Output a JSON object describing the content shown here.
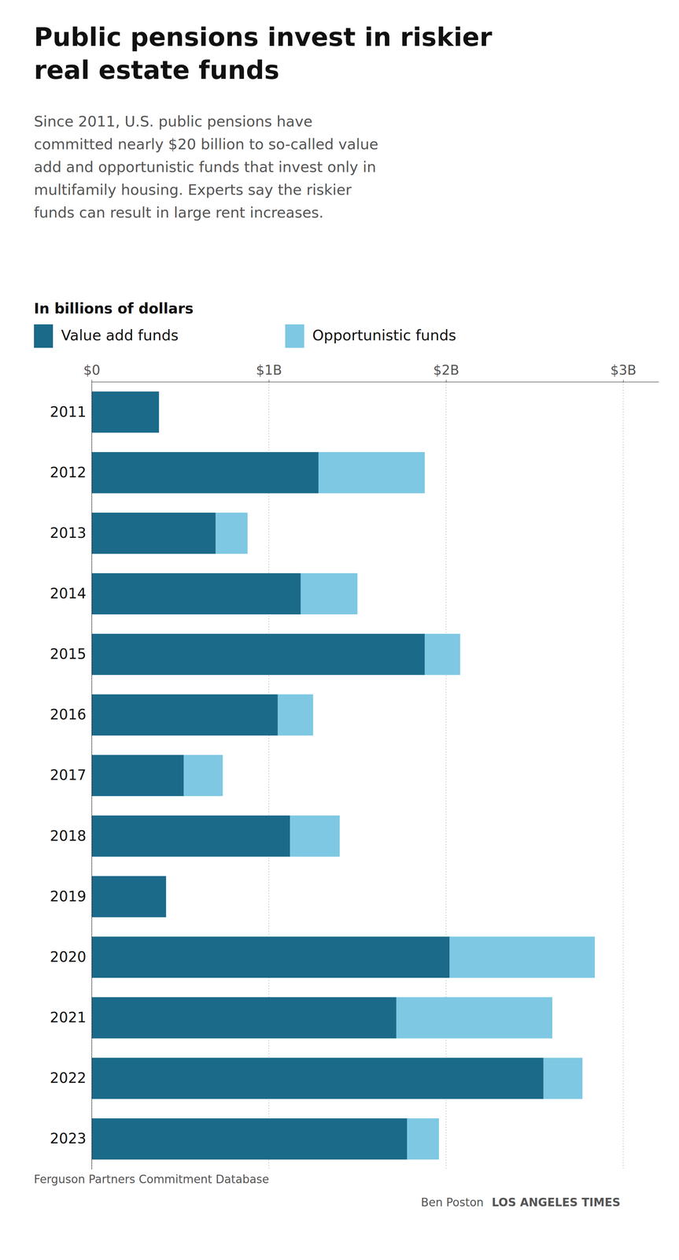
{
  "chart_data": {
    "type": "bar",
    "orientation": "horizontal",
    "stacked": true,
    "title": "Public pensions invest in riskier\nreal estate funds",
    "subtitle": "Since 2011, U.S. public pensions have\ncommitted nearly $20 billion to so-called value\nadd and opportunistic funds that invest only in\nmultifamily housing. Experts say the riskier\nfunds can result in large rent increases.",
    "xlabel": "In billions of dollars",
    "categories": [
      "2011",
      "2012",
      "2013",
      "2014",
      "2015",
      "2016",
      "2017",
      "2018",
      "2019",
      "2020",
      "2021",
      "2022",
      "2023"
    ],
    "series": [
      {
        "name": "Value add funds",
        "color": "#1B6A8A",
        "values": [
          0.38,
          1.28,
          0.7,
          1.18,
          1.88,
          1.05,
          0.52,
          1.12,
          0.42,
          2.02,
          1.72,
          2.55,
          1.78
        ]
      },
      {
        "name": "Opportunistic funds",
        "color": "#7EC8E3",
        "values": [
          0.0,
          0.6,
          0.18,
          0.32,
          0.2,
          0.2,
          0.22,
          0.28,
          0.0,
          0.82,
          0.88,
          0.22,
          0.18
        ]
      }
    ],
    "xlim": [
      0,
      3.2
    ],
    "xticks": [
      {
        "value": 0,
        "label": "$0"
      },
      {
        "value": 1.0,
        "label": "$1B"
      },
      {
        "value": 2.0,
        "label": "$2B"
      },
      {
        "value": 3.0,
        "label": "$3B"
      }
    ],
    "grid": true,
    "legend": "top",
    "annotations": [
      "Ferguson Partners Commitment Database",
      "Ben Poston",
      "LOS ANGELES TIMES"
    ]
  }
}
